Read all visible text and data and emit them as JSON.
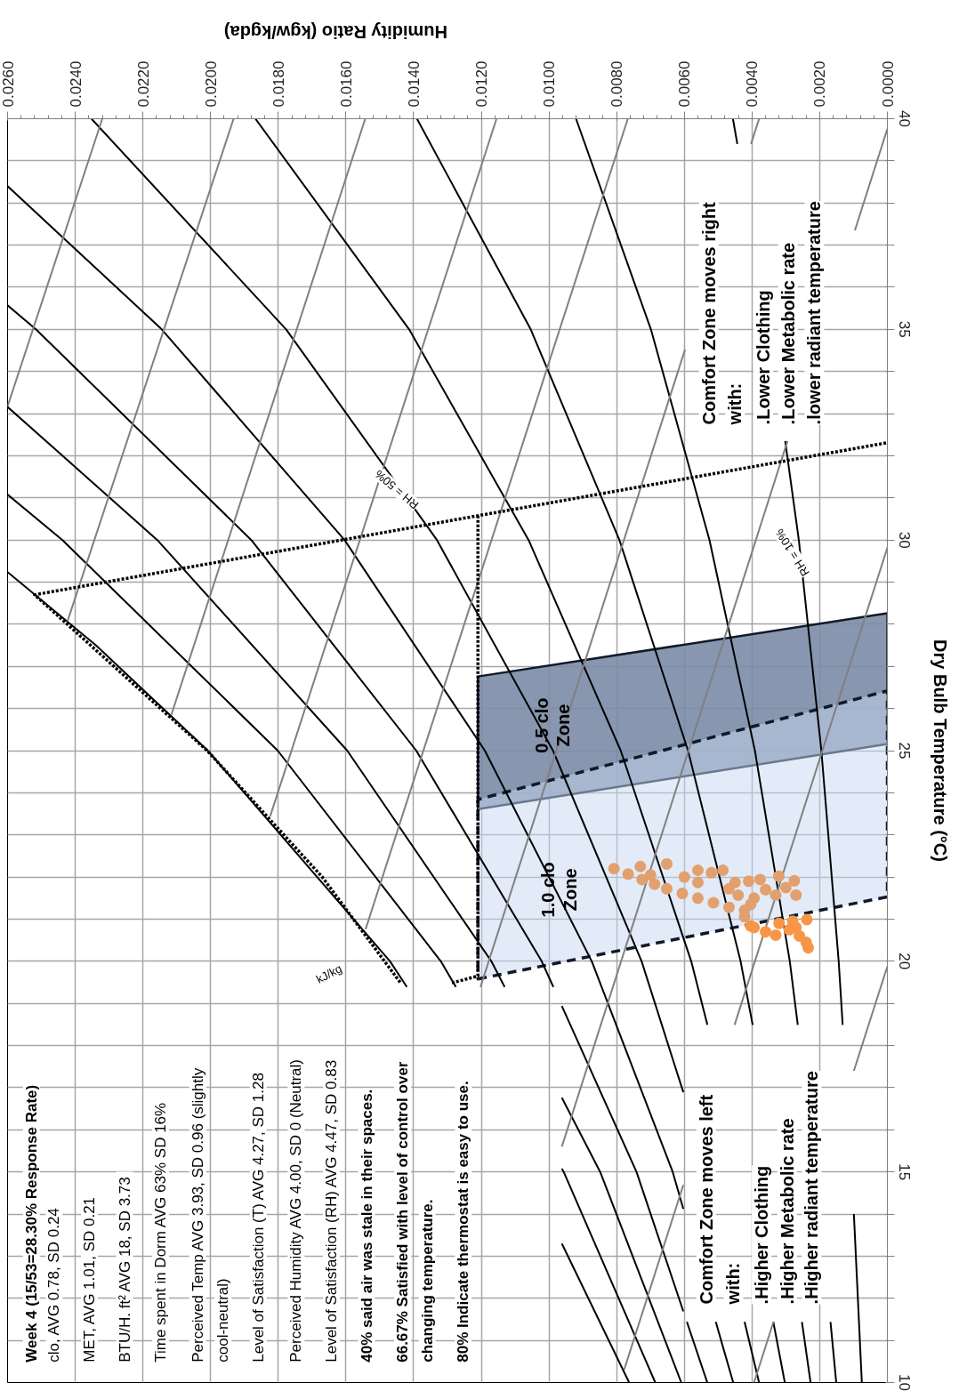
{
  "chart_data": {
    "type": "line",
    "ylabel": "Dry Bulb Temperature (°C)",
    "xlabel": "Humidity Ratio (kgw/kgda)",
    "ylim": [
      10,
      40
    ],
    "xlim": [
      0.026,
      0
    ],
    "grid": true,
    "yticks": [
      10,
      {
        "value": 11,
        "label": null
      },
      {
        "value": 12,
        "label": null
      },
      {
        "value": 13,
        "label": null
      },
      {
        "value": 14,
        "label": null
      },
      15,
      {
        "value": 16,
        "label": null
      },
      {
        "value": 17,
        "label": null
      },
      {
        "value": 18,
        "label": null
      },
      {
        "value": 19,
        "label": null
      },
      20,
      {
        "value": 21,
        "label": null
      },
      {
        "value": 22,
        "label": null
      },
      {
        "value": 23,
        "label": null
      },
      {
        "value": 24,
        "label": null
      },
      25,
      {
        "value": 26,
        "label": null
      },
      {
        "value": 27,
        "label": null
      },
      {
        "value": 28,
        "label": null
      },
      {
        "value": 29,
        "label": null
      },
      30,
      {
        "value": 31,
        "label": null
      },
      {
        "value": 32,
        "label": null
      },
      {
        "value": 33,
        "label": null
      },
      {
        "value": 34,
        "label": null
      },
      35,
      {
        "value": 36,
        "label": null
      },
      {
        "value": 37,
        "label": null
      },
      {
        "value": 38,
        "label": null
      },
      {
        "value": 39,
        "label": null
      },
      40
    ],
    "xticks": [
      {
        "value": 0,
        "label": "0.0000"
      },
      {
        "value": 0.002,
        "label": "0.0020"
      },
      {
        "value": 0.004,
        "label": "0.0040"
      },
      {
        "value": 0.006,
        "label": "0.0060"
      },
      {
        "value": 0.008,
        "label": "0.0080"
      },
      {
        "value": 0.01,
        "label": "0.0100"
      },
      {
        "value": 0.012,
        "label": "0.0120"
      },
      {
        "value": 0.014,
        "label": "0.0140"
      },
      {
        "value": 0.016,
        "label": "0.0160"
      },
      {
        "value": 0.018,
        "label": "0.0180"
      },
      {
        "value": 0.02,
        "label": "0.0200"
      },
      {
        "value": 0.022,
        "label": "0.0220"
      },
      {
        "value": 0.024,
        "label": "0.0240"
      },
      {
        "value": 0.026,
        "label": "0.0260"
      }
    ],
    "series": [
      {
        "type": "area",
        "color": "#7b8ba6",
        "line_style": "solid",
        "values": [
          23.61,
          25.16,
          28.26,
          26.76
        ],
        "x": [
          0.0121,
          0,
          0,
          0.0121
        ]
      },
      {
        "type": "area",
        "color": "#c6d8f0",
        "line_style": "dashed",
        "values": [
          19.58,
          21.53,
          26.42,
          23.84
        ],
        "x": [
          0.0121,
          0,
          0,
          0.0121
        ]
      },
      {
        "color": "#000000",
        "x": [
          0.000755,
          0.00099
        ],
        "values": [
          10,
          14
        ]
      },
      {
        "color": "#000000",
        "x": [
          0.001321,
          0.001439,
          0.001951,
          0.002617,
          0.00302
        ],
        "values": [
          18.49,
          20,
          25,
          30,
          32.35
        ]
      },
      {
        "color": "#000000",
        "x": [
          0.004434,
          0.004565
        ],
        "values": [
          39.4,
          40
        ]
      },
      {
        "color": "#000000",
        "x": [
          0.001511,
          0.001681
        ],
        "values": [
          10,
          11.44
        ]
      },
      {
        "color": "#000000",
        "x": [
          0.002648,
          0.002884,
          0.003915,
          0.005257,
          0.006988,
          0.009201
        ],
        "values": [
          18.49,
          20,
          25,
          30,
          35,
          40
        ]
      },
      {
        "color": "#000000",
        "x": [
          0.00227,
          0.002525
        ],
        "values": [
          10,
          11.44
        ]
      },
      {
        "color": "#000000",
        "x": [
          0.003981,
          0.004338,
          0.005891,
          0.007919,
          0.01054,
          0.013902
        ],
        "values": [
          18.49,
          20,
          25,
          30,
          35,
          40
        ]
      },
      {
        "color": "#000000",
        "x": [
          0.00303,
          0.003371
        ],
        "values": [
          10,
          11.44
        ]
      },
      {
        "color": "#000000",
        "x": [
          0.005319,
          0.005797,
          0.00788,
          0.010603,
          0.014133,
          0.018676
        ],
        "values": [
          18.49,
          20,
          25,
          30,
          35,
          40
        ]
      },
      {
        "color": "#000000",
        "x": [
          0.003792,
          0.00422
        ],
        "values": [
          10,
          11.44
        ]
      },
      {
        "color": "#000000",
        "x": [
          0.00603,
          0.007263,
          0.009881,
          0.013311,
          0.017768,
          0.023521
        ],
        "values": [
          16.89,
          20,
          25,
          30,
          35,
          40
        ]
      },
      {
        "color": "#000000",
        "x": [
          0.004556,
          0.005071
        ],
        "values": [
          10,
          11.44
        ]
      },
      {
        "color": "#000000",
        "x": [
          0.00603,
          0.006344,
          0.008736,
          0.011895,
          0.016042,
          0.021444,
          0.026
        ],
        "values": [
          14.12,
          15,
          20,
          25,
          30,
          35,
          38.4
        ]
      },
      {
        "color": "#000000",
        "x": [
          0.005322,
          0.005925
        ],
        "values": [
          10,
          11.44
        ]
      },
      {
        "color": "#000000",
        "x": [
          0.00603,
          0.007414,
          0.00962
        ],
        "values": [
          11.69,
          15,
          18.94
        ]
      },
      {
        "color": "#000000",
        "x": [
          0.00987,
          0.010216,
          0.013922,
          0.018797,
          0.025162,
          0.026
        ],
        "values": [
          19.39,
          20,
          25,
          30,
          35,
          35.57
        ]
      },
      {
        "color": "#000000",
        "x": [
          0.00609,
          0.008487,
          0.00962
        ],
        "values": [
          10,
          15,
          16.76
        ]
      },
      {
        "color": "#000000",
        "x": [
          0.01131,
          0.011703,
          0.015962,
          0.021575,
          0.026
        ],
        "values": [
          19.39,
          20,
          25,
          30,
          33.16
        ]
      },
      {
        "color": "#000000",
        "x": [
          0.006859,
          0.009565,
          0.00962
        ],
        "values": [
          10,
          15,
          15.08
        ]
      },
      {
        "color": "#000000",
        "x": [
          0.01275,
          0.013197,
          0.018015,
          0.024378,
          0.026
        ],
        "values": [
          19.39,
          20,
          25,
          30,
          31.08
        ]
      },
      {
        "color": "#000000",
        "x": [
          0.007631,
          0.00962
        ],
        "values": [
          10,
          13.3
        ]
      },
      {
        "color": "#000000",
        "x": [
          0.0142,
          0.014698,
          0.020081,
          0.02339,
          0.026
        ],
        "values": [
          19.39,
          20,
          25,
          27.5,
          29.24
        ]
      },
      {
        "color": "#808080",
        "x": [
          0,
          0.00099
        ],
        "values": [
          19.88,
          17.4
        ]
      },
      {
        "color": "#808080",
        "x": [
          0.003366,
          0.00394
        ],
        "values": [
          11.44,
          10
        ]
      },
      {
        "color": "#808080",
        "x": [
          0,
          0.004516
        ],
        "values": [
          29.82,
          18.49
        ]
      },
      {
        "color": "#808080",
        "x": [
          0.00603,
          0.00778
        ],
        "values": [
          14.69,
          10.3
        ]
      },
      {
        "color": "#808080",
        "x": [
          0,
          0.00096
        ],
        "values": [
          39.76,
          37.35
        ]
      },
      {
        "color": "#808080",
        "x": [
          0.002951,
          0.00962
        ],
        "values": [
          32.35,
          15.6
        ]
      },
      {
        "color": "#808080",
        "x": [
          0.00379,
          0.00403
        ],
        "values": [
          40,
          39.4
        ]
      },
      {
        "color": "#808080",
        "x": [
          0.00598,
          0.012025
        ],
        "values": [
          34.52,
          19.39
        ]
      },
      {
        "color": "#808080",
        "values": [
          40,
          20.76
        ],
        "x": [
          0.00767,
          0.01542
        ]
      },
      {
        "color": "#808080",
        "values": [
          40,
          23.44
        ],
        "x": [
          0.01155,
          0.01824
        ]
      },
      {
        "color": "#808080",
        "values": [
          40,
          25.85
        ],
        "x": [
          0.01543,
          0.02116
        ]
      },
      {
        "color": "#808080",
        "values": [
          40,
          28.07
        ],
        "x": [
          0.01932,
          0.02423
        ]
      },
      {
        "color": "#808080",
        "values": [
          40,
          33.17
        ],
        "x": [
          0.0232,
          0.026
        ]
      },
      {
        "color": "#000000",
        "line_style": "dotted",
        "values": [
          19.5,
          22,
          25,
          28.7,
          32.31
        ],
        "x": [
          0.0144,
          0.0167,
          0.0201,
          0.0252,
          0
        ]
      },
      {
        "color": "#000000",
        "line_style": "dotted",
        "values": [
          30.58,
          19.65,
          19.48
        ],
        "x": [
          0.0121,
          0.0121,
          0.0129
        ]
      },
      {
        "type": "scatter",
        "marker": "circle",
        "color": "#e2a06e",
        "values": [
          22.2,
          22.07,
          21.94,
          21.83,
          21.72,
          21.61,
          21.5,
          21.39,
          21.28,
          21.06,
          21.35,
          21.72,
          21.87,
          22.0,
          22.31,
          22.25,
          22.05,
          22.16,
          22.1,
          22.16,
          21.87,
          21.9,
          21.94,
          22.02,
          21.91,
          21.75,
          21.57,
          21.57,
          21.7,
          21.5,
          21.57,
          21.21
        ],
        "x": [
          0.00808,
          0.00766,
          0.00725,
          0.00688,
          0.00652,
          0.00606,
          0.0056,
          0.00514,
          0.00468,
          0.00422,
          0.00404,
          0.00468,
          0.0056,
          0.006,
          0.00652,
          0.0073,
          0.007,
          0.0056,
          0.0052,
          0.00486,
          0.0045,
          0.0041,
          0.00376,
          0.00321,
          0.00275,
          0.003,
          0.0027,
          0.0033,
          0.0036,
          0.00394,
          0.00441,
          0.00422
        ]
      },
      {
        "type": "scatter",
        "marker": "circle",
        "color": "#f79646",
        "values": [
          20.84,
          20.99,
          20.32,
          20.62,
          20.8,
          20.9,
          20.95,
          20.6,
          20.45,
          20.75,
          20.7,
          20.8
        ],
        "x": [
          0.00404,
          0.00238,
          0.00234,
          0.0033,
          0.00394,
          0.0032,
          0.0028,
          0.0026,
          0.0024,
          0.0029,
          0.0036,
          0.0027
        ]
      }
    ],
    "annotations": [
      "Week 4 (15/53=28.30% Response Rate)",
      "clo,  AVG 0.78, SD 0.24",
      "MET,  AVG 1.01, SD 0.21",
      "BTU/H. ft²  AVG 18, SD 3.73",
      "Time spent in Dorm   AVG 63% SD 16%",
      "Perceived Temp  AVG 3.93, SD 0.96 (slightly",
      "cool-neutral)",
      "Level of Satisfaction (T) AVG 4.27, SD 1.28",
      "Perceived Humidity  AVG 4.00, SD 0 (Neutral)",
      "Level of Satisfaction (RH) AVG 4.47, SD 0.83",
      "40% said air was stale in their spaces.",
      "66.67% Satisfied with level of control over",
      "changing temperature.",
      "80% Indicate thermostat is easy to use.",
      "Comfort Zone moves right",
      "with:",
      ".Lower Clothing",
      ".Lower Metabolic rate",
      ".lower radiant temperature",
      "Comfort Zone moves left",
      "with:",
      ".Higher Clothing",
      ".Higher Metabolic rate",
      ".Higher radiant temperature",
      "0.5 clo\nZone",
      {
        "text": "1.0 clo\nZone",
        "y": 21.7,
        "x": 0.0097
      },
      {
        "text": "RH = 50%",
        "y": 31.2,
        "x": 0.0145
      },
      "RH = 10%",
      {
        "text": "kJ/kg",
        "y": 19.7,
        "x": 0.0165
      }
    ]
  }
}
